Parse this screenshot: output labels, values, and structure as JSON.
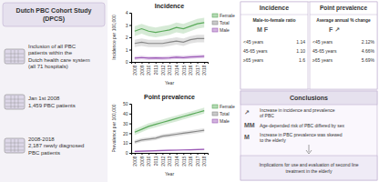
{
  "title": "Dutch PBC Cohort Study\n(DPCS)",
  "annotations": [
    "Inclusion of all PBC\npatients within the\nDutch health care system\n(all 71 hospitals)",
    "Jan 1st 2008\n1,459 PBC patients",
    "2008-2018\n2,187 newly diagnosed\nPBC patients",
    "Incidence",
    "Male-to-female ratio",
    "M  F",
    "<45 years",
    "1.14",
    "45-65 years",
    "1.10",
    "≥65 years",
    "1.6",
    "Point prevalence",
    "Average annual % change",
    "F  ↗",
    "<45 years",
    "2.12%",
    "45-65 years",
    "4.66%",
    "≥65 years",
    "5.69%",
    "Conclusions",
    "↗",
    "Increase in incidence and prevalence\nof PBC",
    "MM",
    "Age-depended risk of PBC differed by sex",
    "M",
    "Increase in PBC prevalence was skewed\nto the elderly",
    "Implications for use and evaluation of second line\ntreatment in the elderly"
  ],
  "chart_data": [
    {
      "type": "line",
      "title": "Incidence",
      "x_label": "Year",
      "y_label": "Incidence per 100,000",
      "x": [
        2008,
        2009,
        2010,
        2011,
        2012,
        2013,
        2014,
        2015,
        2016,
        2017,
        2018
      ],
      "xlim": [
        2007.5,
        2018.5
      ],
      "xticks": [
        2008,
        2009,
        2010,
        2011,
        2012,
        2013,
        2014,
        2015,
        2016,
        2017,
        2018
      ],
      "ylim": [
        0,
        4
      ],
      "yticks": [
        0,
        1,
        2,
        3,
        4
      ],
      "grid": false,
      "legend": "right",
      "series": [
        {
          "name": "Female",
          "color": "#5aaa5a",
          "values": [
            2.5,
            2.7,
            2.5,
            2.4,
            2.5,
            2.6,
            2.8,
            2.7,
            2.9,
            3.1,
            3.2
          ],
          "lower": [
            2.1,
            2.3,
            2.1,
            2.0,
            2.1,
            2.2,
            2.4,
            2.3,
            2.5,
            2.7,
            2.8
          ],
          "upper": [
            2.9,
            3.1,
            2.9,
            2.8,
            2.9,
            3.0,
            3.2,
            3.1,
            3.3,
            3.5,
            3.6
          ]
        },
        {
          "name": "Total",
          "color": "#888888",
          "values": [
            1.5,
            1.6,
            1.5,
            1.5,
            1.5,
            1.6,
            1.7,
            1.6,
            1.8,
            1.9,
            1.9
          ],
          "lower": [
            1.2,
            1.3,
            1.2,
            1.2,
            1.2,
            1.3,
            1.4,
            1.3,
            1.5,
            1.6,
            1.6
          ],
          "upper": [
            1.8,
            1.9,
            1.8,
            1.8,
            1.8,
            1.9,
            2.0,
            1.9,
            2.1,
            2.2,
            2.2
          ]
        },
        {
          "name": "Male",
          "color": "#9b59b6",
          "values": [
            0.3,
            0.35,
            0.3,
            0.32,
            0.3,
            0.33,
            0.38,
            0.35,
            0.4,
            0.42,
            0.45
          ],
          "lower": [
            0.15,
            0.2,
            0.15,
            0.17,
            0.15,
            0.18,
            0.22,
            0.2,
            0.25,
            0.27,
            0.3
          ],
          "upper": [
            0.45,
            0.5,
            0.45,
            0.47,
            0.45,
            0.48,
            0.54,
            0.5,
            0.55,
            0.57,
            0.6
          ]
        }
      ]
    },
    {
      "type": "line",
      "title": "Point prevalence",
      "x_label": "Year",
      "y_label": "Prevalence per 100,000",
      "x": [
        2008,
        2009,
        2010,
        2011,
        2012,
        2013,
        2014,
        2015,
        2016,
        2017,
        2018
      ],
      "xlim": [
        2007.5,
        2018.5
      ],
      "xticks": [
        2008,
        2009,
        2010,
        2011,
        2012,
        2013,
        2014,
        2015,
        2016,
        2017,
        2018
      ],
      "ylim": [
        0,
        50
      ],
      "yticks": [
        0,
        10,
        20,
        30,
        40,
        50
      ],
      "grid": false,
      "legend": "right",
      "series": [
        {
          "name": "Female",
          "color": "#5aaa5a",
          "values": [
            21,
            24,
            27,
            29,
            31,
            33,
            35,
            37,
            39,
            41,
            43
          ],
          "lower": [
            18,
            21,
            24,
            26,
            28,
            30,
            32,
            34,
            36,
            38,
            40
          ],
          "upper": [
            24,
            27,
            30,
            32,
            34,
            36,
            38,
            40,
            42,
            44,
            46
          ]
        },
        {
          "name": "Total",
          "color": "#888888",
          "values": [
            11,
            13,
            14,
            15,
            17,
            18,
            19,
            20,
            21,
            22,
            23
          ],
          "lower": [
            9,
            11,
            12,
            13,
            15,
            16,
            17,
            18,
            19,
            20,
            21
          ],
          "upper": [
            13,
            15,
            16,
            17,
            19,
            20,
            21,
            22,
            23,
            24,
            25
          ]
        },
        {
          "name": "Male",
          "color": "#9b59b6",
          "values": [
            1.5,
            1.8,
            2.0,
            2.2,
            2.4,
            2.6,
            2.8,
            3.0,
            3.2,
            3.4,
            3.6
          ],
          "lower": [
            0.8,
            1.0,
            1.2,
            1.4,
            1.6,
            1.8,
            2.0,
            2.2,
            2.4,
            2.6,
            2.8
          ],
          "upper": [
            2.2,
            2.6,
            2.8,
            3.0,
            3.2,
            3.4,
            3.6,
            3.8,
            4.0,
            4.2,
            4.4
          ]
        }
      ]
    }
  ]
}
